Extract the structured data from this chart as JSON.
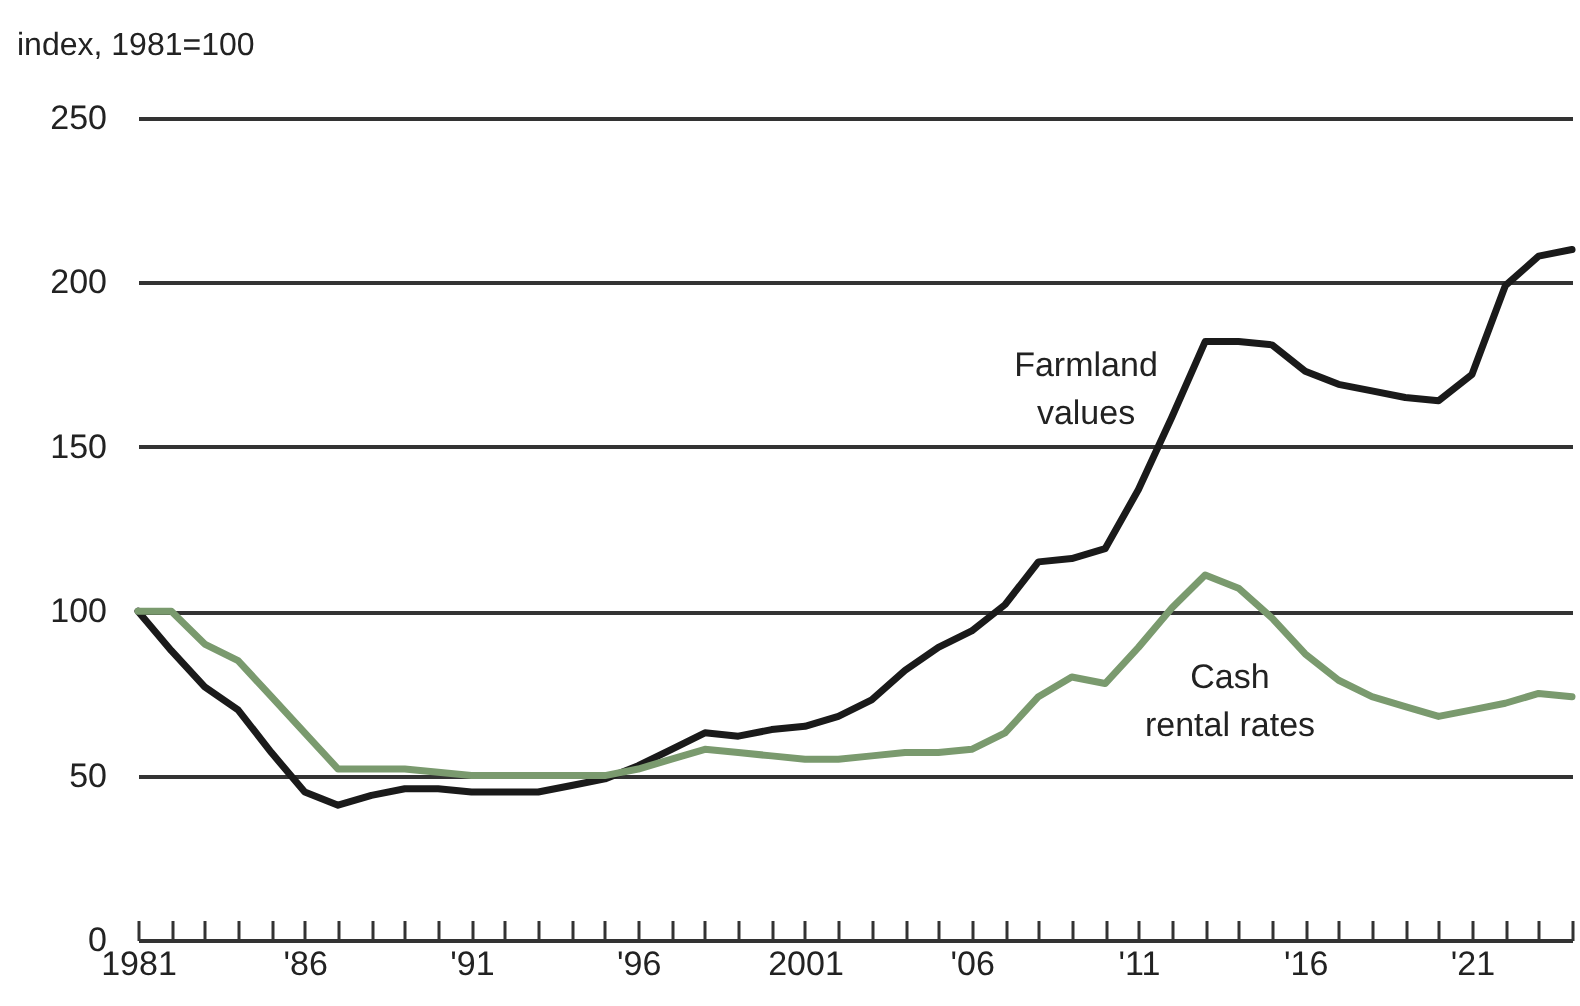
{
  "chart_data": {
    "type": "line",
    "ylabel": "index, 1981=100",
    "x": [
      1981,
      1982,
      1983,
      1984,
      1985,
      1986,
      1987,
      1988,
      1989,
      1990,
      1991,
      1992,
      1993,
      1994,
      1995,
      1996,
      1997,
      1998,
      1999,
      2000,
      2001,
      2002,
      2003,
      2004,
      2005,
      2006,
      2007,
      2008,
      2009,
      2010,
      2011,
      2012,
      2013,
      2014,
      2015,
      2016,
      2017,
      2018,
      2019,
      2020,
      2021,
      2022,
      2023,
      2024
    ],
    "series": [
      {
        "name": "Farmland values",
        "color": "#1a1a1a",
        "values": [
          100,
          88,
          77,
          70,
          57,
          45,
          41,
          44,
          46,
          46,
          45,
          45,
          45,
          47,
          49,
          53,
          58,
          63,
          62,
          64,
          65,
          68,
          73,
          82,
          89,
          94,
          102,
          115,
          116,
          119,
          137,
          159,
          182,
          182,
          181,
          173,
          169,
          167,
          165,
          164,
          172,
          199,
          208,
          210
        ]
      },
      {
        "name": "Cash rental rates",
        "color": "#7a9a6e",
        "values": [
          100,
          100,
          90,
          85,
          74,
          63,
          52,
          52,
          52,
          51,
          50,
          50,
          50,
          50,
          50,
          52,
          55,
          58,
          57,
          56,
          55,
          55,
          56,
          57,
          57,
          58,
          63,
          74,
          80,
          78,
          89,
          101,
          111,
          107,
          98,
          87,
          79,
          74,
          71,
          68,
          70,
          72,
          75,
          74
        ]
      }
    ],
    "xlim": [
      1981,
      2024
    ],
    "xticks": [
      {
        "value": 1981,
        "label": "1981"
      },
      {
        "value": 1982,
        "label": null
      },
      {
        "value": 1983,
        "label": null
      },
      {
        "value": 1984,
        "label": null
      },
      {
        "value": 1985,
        "label": null
      },
      {
        "value": 1986,
        "label": "'86"
      },
      {
        "value": 1987,
        "label": null
      },
      {
        "value": 1988,
        "label": null
      },
      {
        "value": 1989,
        "label": null
      },
      {
        "value": 1990,
        "label": null
      },
      {
        "value": 1991,
        "label": "'91"
      },
      {
        "value": 1992,
        "label": null
      },
      {
        "value": 1993,
        "label": null
      },
      {
        "value": 1994,
        "label": null
      },
      {
        "value": 1995,
        "label": null
      },
      {
        "value": 1996,
        "label": "'96"
      },
      {
        "value": 1997,
        "label": null
      },
      {
        "value": 1998,
        "label": null
      },
      {
        "value": 1999,
        "label": null
      },
      {
        "value": 2000,
        "label": null
      },
      {
        "value": 2001,
        "label": "2001"
      },
      {
        "value": 2002,
        "label": null
      },
      {
        "value": 2003,
        "label": null
      },
      {
        "value": 2004,
        "label": null
      },
      {
        "value": 2005,
        "label": null
      },
      {
        "value": 2006,
        "label": "'06"
      },
      {
        "value": 2007,
        "label": null
      },
      {
        "value": 2008,
        "label": null
      },
      {
        "value": 2009,
        "label": null
      },
      {
        "value": 2010,
        "label": null
      },
      {
        "value": 2011,
        "label": "'11"
      },
      {
        "value": 2012,
        "label": null
      },
      {
        "value": 2013,
        "label": null
      },
      {
        "value": 2014,
        "label": null
      },
      {
        "value": 2015,
        "label": null
      },
      {
        "value": 2016,
        "label": "'16"
      },
      {
        "value": 2017,
        "label": null
      },
      {
        "value": 2018,
        "label": null
      },
      {
        "value": 2019,
        "label": null
      },
      {
        "value": 2020,
        "label": null
      },
      {
        "value": 2021,
        "label": "'21"
      },
      {
        "value": 2022,
        "label": null
      },
      {
        "value": 2023,
        "label": null
      },
      {
        "value": 2024,
        "label": null
      }
    ],
    "ylim": [
      0,
      250
    ],
    "yticks": [
      0,
      50,
      100,
      150,
      200,
      250
    ],
    "grid": "y",
    "legend": false,
    "marker": "none",
    "line_style": "solid"
  }
}
